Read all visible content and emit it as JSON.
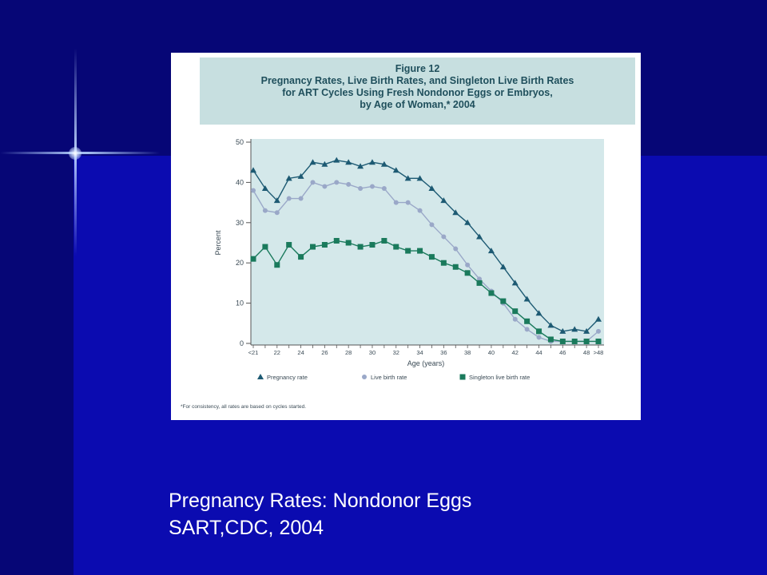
{
  "figure": {
    "number": "Figure 12",
    "title_lines": [
      "Pregnancy Rates, Live Birth Rates, and Singleton Live Birth Rates",
      "for ART Cycles Using Fresh Nondonor Eggs or Embryos,",
      "by Age of Woman,* 2004"
    ],
    "footnote": "*For consistency, all rates are based on cycles started."
  },
  "caption": {
    "line1": "Pregnancy Rates: Nondonor Eggs",
    "line2": "SART,CDC, 2004"
  },
  "colors": {
    "background": "#0b0bb0",
    "plot_bg": "#d4e8ea",
    "pregnancy": "#1d5a73",
    "live_birth": "#9aa8c8",
    "singleton": "#1a7a5c"
  },
  "chart_data": {
    "type": "line",
    "xlabel": "Age (years)",
    "ylabel": "Percent",
    "ylim": [
      0,
      50
    ],
    "yticks": [
      "0",
      "10",
      "20",
      "30",
      "40",
      "50"
    ],
    "x": [
      "<21",
      "21",
      "22",
      "23",
      "24",
      "25",
      "26",
      "27",
      "28",
      "29",
      "30",
      "31",
      "32",
      "33",
      "34",
      "35",
      "36",
      "37",
      "38",
      "39",
      "40",
      "41",
      "42",
      "43",
      "44",
      "45",
      "46",
      "47",
      "48",
      ">48"
    ],
    "xtick_labels": [
      "<21",
      "22",
      "24",
      "26",
      "28",
      "30",
      "32",
      "34",
      "36",
      "38",
      "40",
      "42",
      "44",
      "46",
      "48",
      ">48"
    ],
    "grid": false,
    "legend_position": "bottom",
    "series": [
      {
        "name": "Pregnancy rate",
        "marker": "triangle",
        "values": [
          43,
          38.5,
          35.5,
          41,
          41.5,
          45,
          44.5,
          45.5,
          45,
          44,
          45,
          44.5,
          43,
          41,
          41,
          38.5,
          35.5,
          32.5,
          30,
          26.5,
          23,
          19,
          15,
          11,
          7.5,
          4.5,
          3,
          3.5,
          3,
          6
        ]
      },
      {
        "name": "Live birth rate",
        "marker": "circle",
        "values": [
          38,
          33,
          32.5,
          36,
          36,
          40,
          39,
          40,
          39.5,
          38.5,
          39,
          38.5,
          35,
          35,
          33,
          29.5,
          26.5,
          23.5,
          19.5,
          16,
          13,
          10,
          6,
          3.5,
          1.5,
          0.5,
          0.5,
          0.5,
          0.5,
          3
        ]
      },
      {
        "name": "Singleton live birth rate",
        "marker": "square",
        "values": [
          21,
          24,
          19.5,
          24.5,
          21.5,
          24,
          24.5,
          25.5,
          25,
          24,
          24.5,
          25.5,
          24,
          23,
          23,
          21.5,
          20,
          19,
          17.5,
          15,
          12.5,
          10.5,
          8,
          5.5,
          3,
          1,
          0.5,
          0.5,
          0.5,
          0.5
        ]
      }
    ]
  }
}
